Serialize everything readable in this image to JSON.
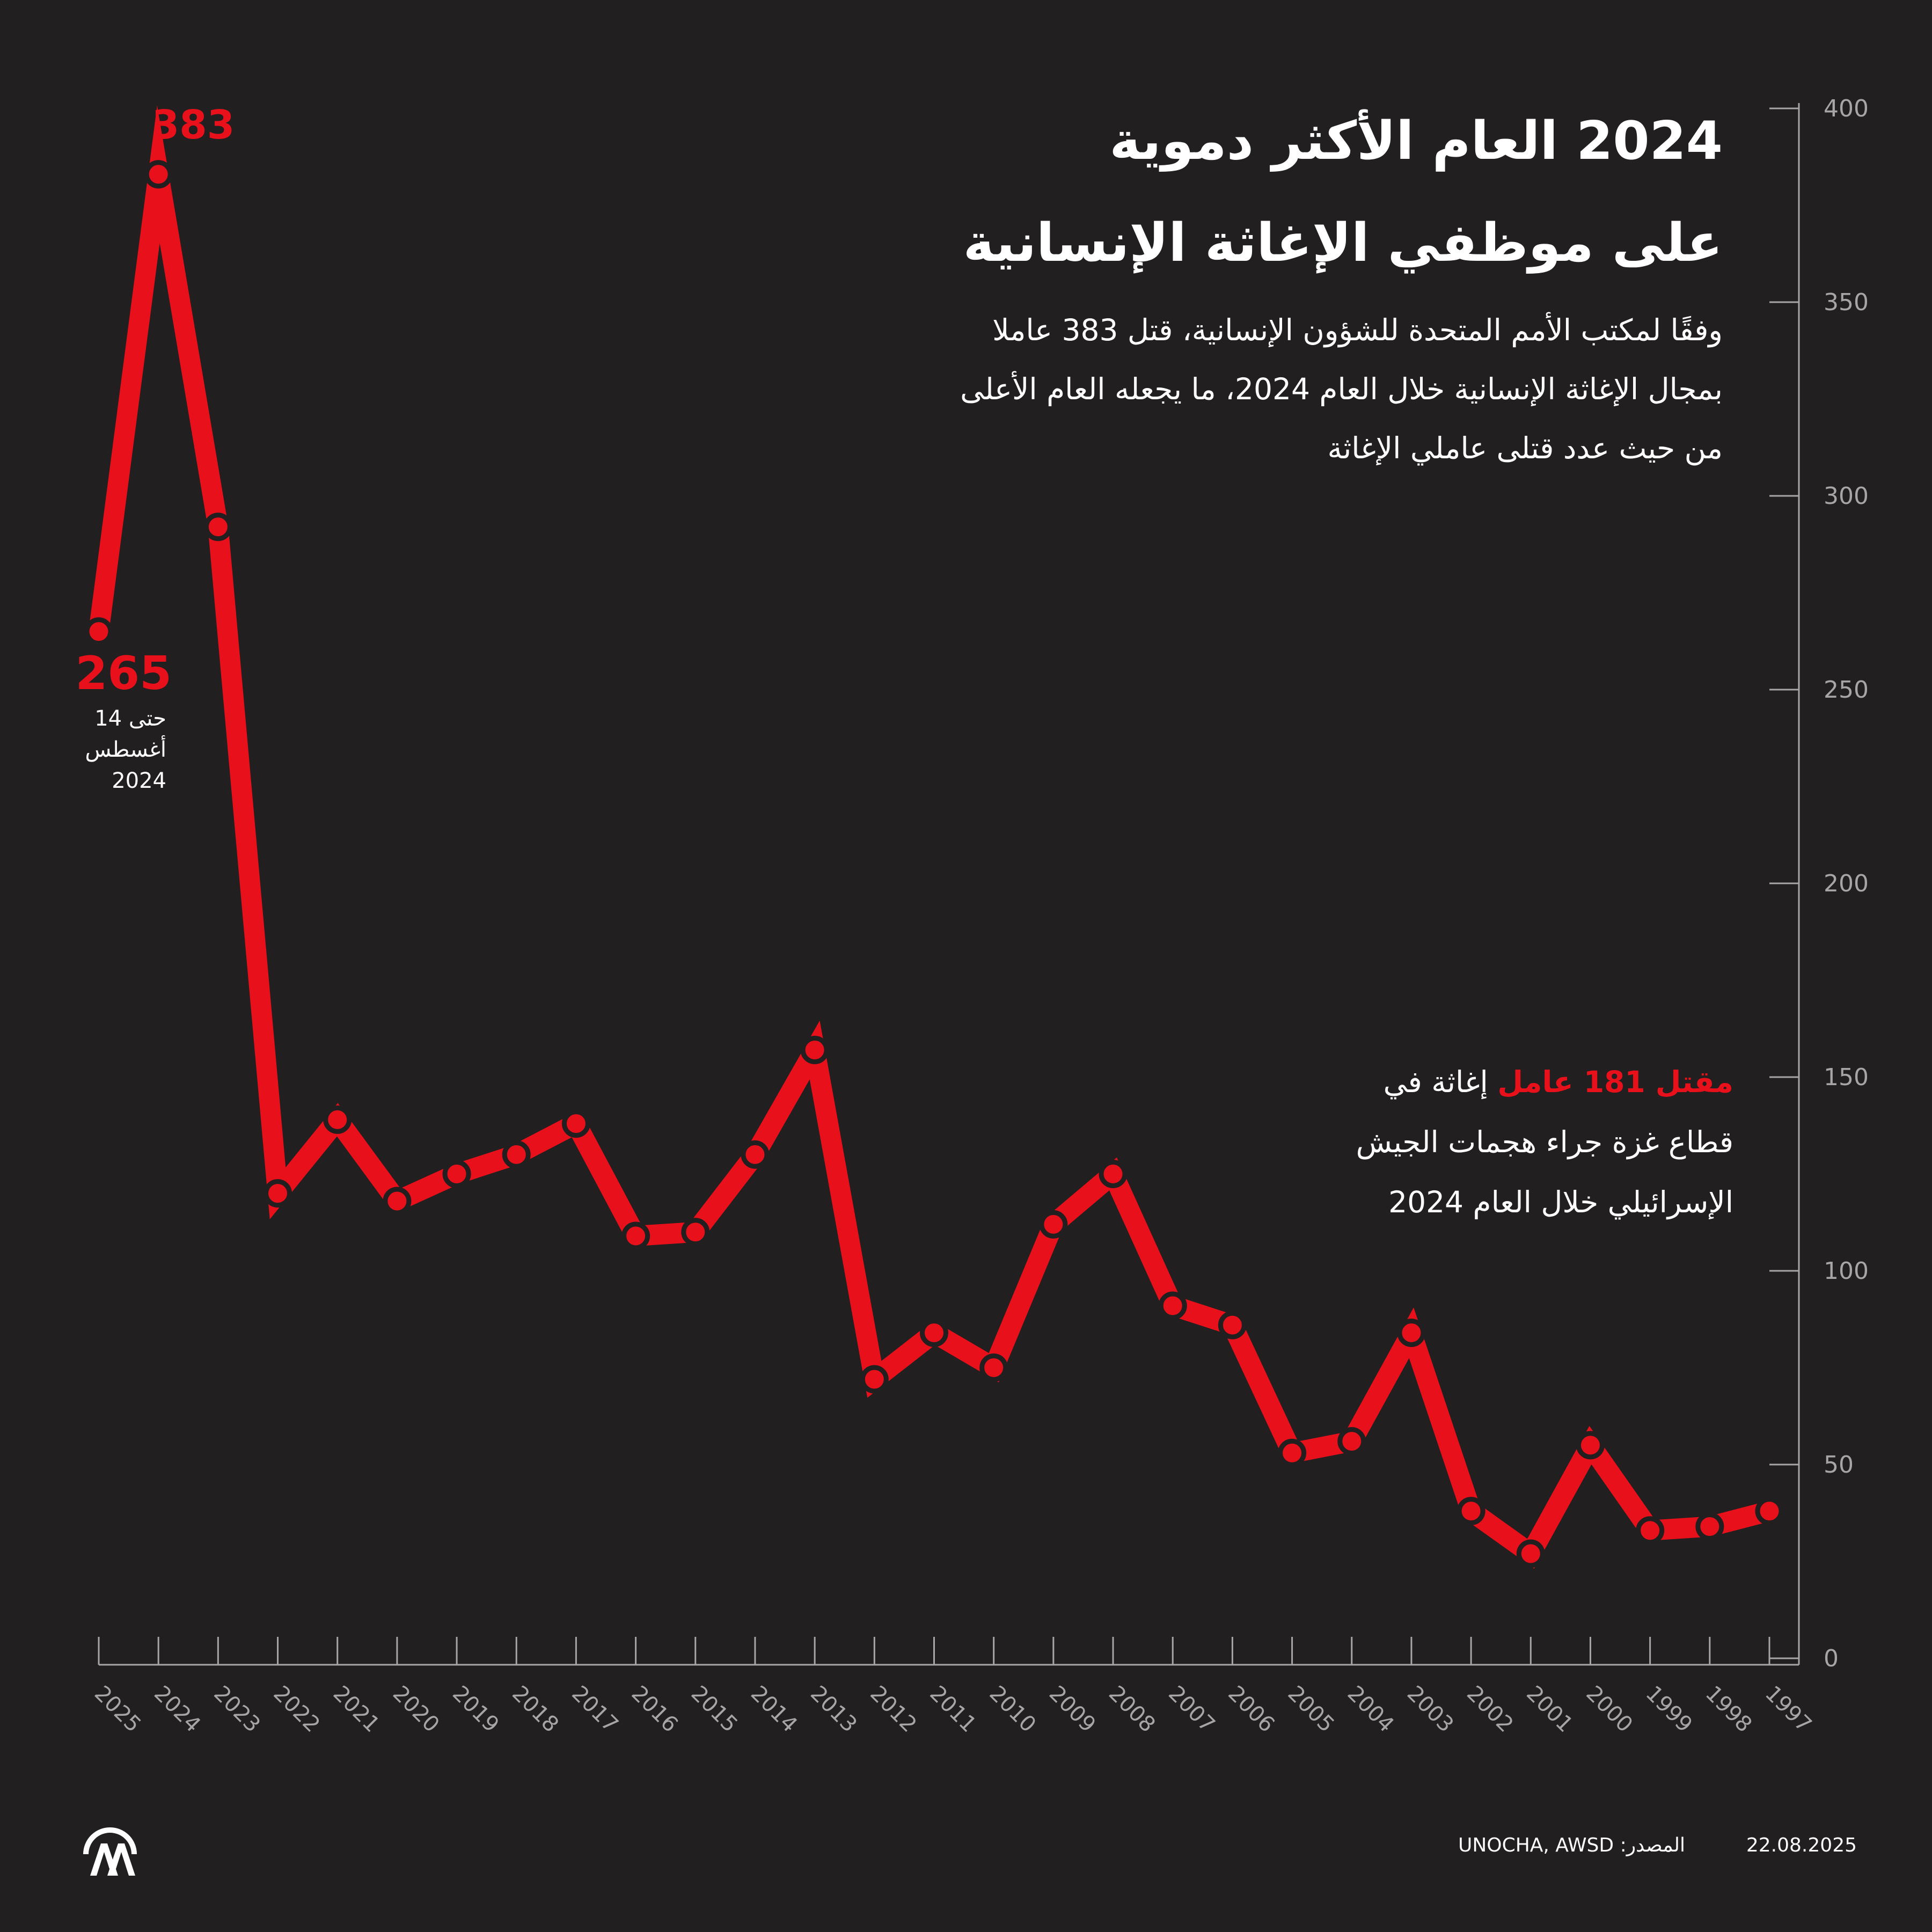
{
  "header": {
    "title_lines": [
      "2024 العام الأكثر دموية",
      "على موظفي الإغاثة الإنسانية"
    ],
    "subtitle_lines": [
      "وفقًا لمكتب الأمم المتحدة للشؤون الإنسانية، قتل 383 عاملا",
      "بمجال الإغاثة الإنسانية خلال العام 2024، ما يجعله العام الأعلى",
      "من حيث عدد قتلى عاملي الإغاثة"
    ]
  },
  "annotation": {
    "highlight": "مقتل 181 عامل",
    "line1_rest": " إغاثة في",
    "line2": "قطاع غزة جراء هجمات الجيش",
    "line3": "الإسرائيلي خلال العام 2024"
  },
  "labels": {
    "peak_value": "383",
    "last_value": "265",
    "last_note_lines": [
      "حتى 14",
      "أغسطس",
      "2024"
    ]
  },
  "footer": {
    "date": "22.08.2025",
    "source": "المصدر: UNOCHA, AWSD"
  },
  "colors": {
    "background": "#221f20",
    "line": "#e8101a",
    "axis": "#a6a6a6",
    "text": "#ffffff"
  },
  "logo": {
    "icon": "aa-agency-logo"
  },
  "chart_data": {
    "type": "line",
    "x_direction": "right-to-left",
    "y_axis_position": "right",
    "ylim": [
      0,
      400
    ],
    "yticks": [
      0,
      50,
      100,
      150,
      200,
      250,
      300,
      350,
      400
    ],
    "x_tick_labels": [
      "1997",
      "1998",
      "1999",
      "2000",
      "2001",
      "2002",
      "2003",
      "2004",
      "2005",
      "2006",
      "2007",
      "2008",
      "2009",
      "2010",
      "2011",
      "2012",
      "2013",
      "2014",
      "2015",
      "2016",
      "2017",
      "2018",
      "2019",
      "2020",
      "2021",
      "2022",
      "2023",
      "2024",
      "2025"
    ],
    "series": [
      {
        "x": [
          1997,
          1998,
          1999,
          2000,
          2001,
          2002,
          2003,
          2004,
          2005,
          2006,
          2007,
          2008,
          2009,
          2010,
          2011,
          2012,
          2013,
          2014,
          2015,
          2016,
          2017,
          2018,
          2019,
          2020,
          2021,
          2022,
          2023,
          2024,
          2025
        ],
        "values": [
          38,
          34,
          33,
          55,
          27,
          38,
          84,
          56,
          53,
          86,
          91,
          125,
          112,
          75,
          84,
          72,
          157,
          130,
          110,
          109,
          138,
          130,
          125,
          118,
          139,
          120,
          292,
          383,
          265
        ]
      }
    ]
  }
}
